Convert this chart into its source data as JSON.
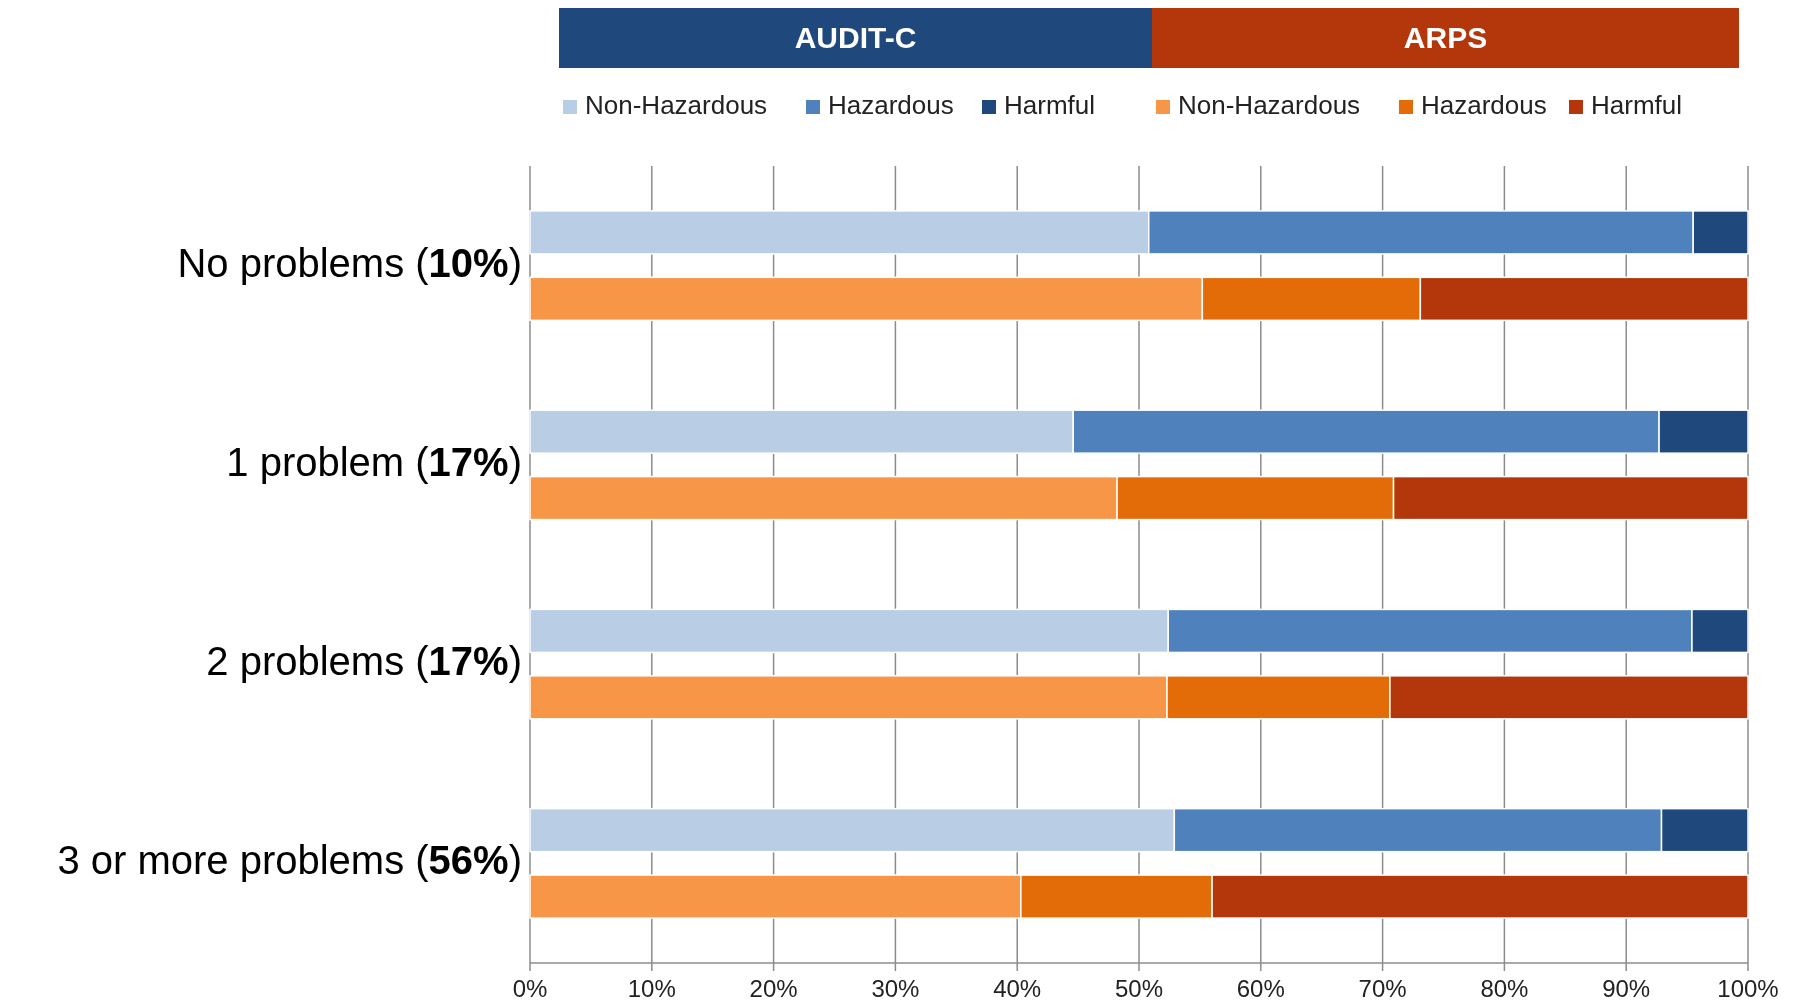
{
  "chart_data": {
    "type": "bar",
    "orientation": "horizontal",
    "stacked": true,
    "categories": [
      "No problems (10%)",
      null,
      null,
      "1 problem (17%)",
      null,
      null,
      "2 problems (17%)",
      null,
      null,
      "3 or more problems (56%)",
      null,
      null
    ],
    "series": [
      {
        "name": "Non-Hazardous",
        "color": "#b9cde5",
        "values": [
          50.8,
          null,
          null,
          44.6,
          null,
          null,
          52.4,
          null,
          null,
          52.9,
          null,
          null
        ]
      },
      {
        "name": "Hazardous",
        "color": "#4f81bd",
        "values": [
          44.7,
          null,
          null,
          48.1,
          null,
          null,
          43.0,
          null,
          null,
          40.0,
          null,
          null
        ]
      },
      {
        "name": "Harmful",
        "color": "#1f497d",
        "values": [
          4.5,
          null,
          null,
          7.3,
          null,
          null,
          4.6,
          null,
          null,
          7.1,
          null,
          null
        ]
      },
      {
        "name": "Non-Hazardous",
        "color": "#f79646",
        "values": [
          null,
          55.2,
          null,
          null,
          48.2,
          null,
          null,
          52.3,
          null,
          null,
          40.3,
          null
        ]
      },
      {
        "name": "Hazardous",
        "color": "#e36c09",
        "values": [
          null,
          17.9,
          null,
          null,
          22.7,
          null,
          null,
          18.3,
          null,
          null,
          15.7,
          null
        ]
      },
      {
        "name": "Harmful",
        "color": "#b3370b",
        "values": [
          null,
          26.9,
          null,
          null,
          29.1,
          null,
          null,
          29.4,
          null,
          null,
          44.0,
          null
        ]
      }
    ],
    "xlim": [
      0,
      100
    ],
    "xticks": [
      {
        "value": 0,
        "label": "0%"
      },
      {
        "value": 10,
        "label": "10%"
      },
      {
        "value": 20,
        "label": "20%"
      },
      {
        "value": 30,
        "label": "30%"
      },
      {
        "value": 40,
        "label": "40%"
      },
      {
        "value": 50,
        "label": "50%"
      },
      {
        "value": 60,
        "label": "60%"
      },
      {
        "value": 70,
        "label": "70%"
      },
      {
        "value": 80,
        "label": "80%"
      },
      {
        "value": 90,
        "label": "90%"
      },
      {
        "value": 100,
        "label": "100%"
      }
    ],
    "grid": "x",
    "legend": "top",
    "annotations": [
      "AUDIT-C",
      "ARPS"
    ]
  }
}
